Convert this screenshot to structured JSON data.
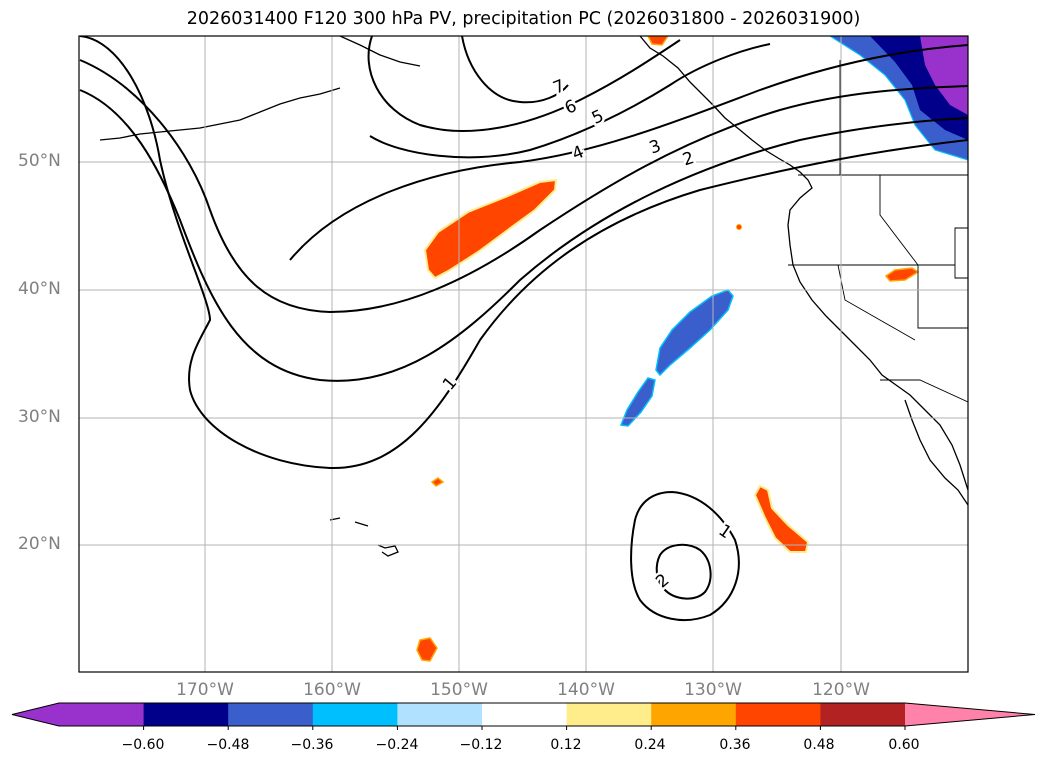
{
  "title": "2026031400 F120 300 hPa PV, precipitation PC (2026031800 - 2026031900)",
  "lat_labels": [
    "50°N",
    "40°N",
    "30°N",
    "20°N"
  ],
  "lon_labels": [
    "170°W",
    "160°W",
    "150°W",
    "140°W",
    "130°W",
    "120°W"
  ],
  "contour_labels": [
    "7",
    "6",
    "5",
    "4",
    "3",
    "2",
    "1",
    "1",
    "2"
  ],
  "colorbar": {
    "ticks": [
      "−0.60",
      "−0.48",
      "−0.36",
      "−0.24",
      "−0.12",
      "0.12",
      "0.24",
      "0.36",
      "0.48",
      "0.60"
    ],
    "colors": [
      "#9932cc",
      "#00008b",
      "#3a5fcd",
      "#00bfff",
      "#b0e2ff",
      "#ffffff",
      "#ffec8b",
      "#ffa500",
      "#ff4500",
      "#b22222",
      "#ff82ab"
    ],
    "extend": "both"
  },
  "map": {
    "lat_range": [
      10,
      60
    ],
    "lon_range": [
      -180,
      -110
    ],
    "gridlines": true
  }
}
